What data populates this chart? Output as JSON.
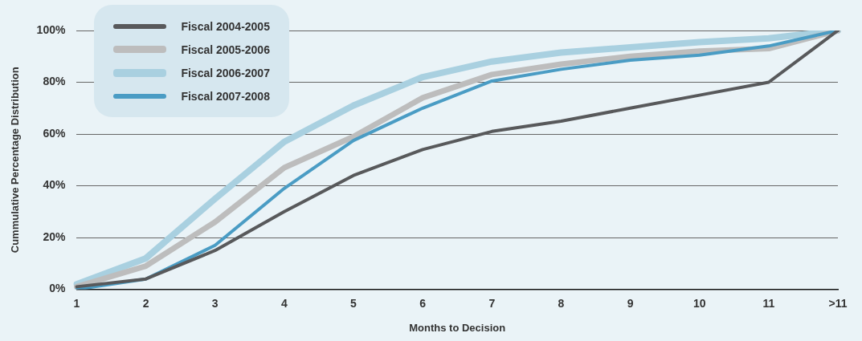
{
  "chart_data": {
    "type": "line",
    "xlabel": "Months to Decision",
    "ylabel": "Cummulative Percentage Distribution",
    "categories": [
      "1",
      "2",
      "3",
      "4",
      "5",
      "6",
      "7",
      "8",
      "9",
      "10",
      "11",
      ">11"
    ],
    "series": [
      {
        "name": "Fiscal 2004-2005",
        "color": "#58595b",
        "values": [
          1,
          4,
          15,
          30,
          44,
          54,
          61,
          65,
          70,
          75,
          80,
          100
        ]
      },
      {
        "name": "Fiscal 2005-2006",
        "color": "#bdbdbd",
        "values": [
          1,
          9,
          26,
          47,
          59,
          74,
          83,
          87,
          90,
          92,
          93,
          100
        ]
      },
      {
        "name": "Fiscal 2006-2007",
        "color": "#a9d0e0",
        "values": [
          2,
          12,
          35,
          57,
          71,
          82,
          88,
          91.5,
          93.5,
          95.5,
          97,
          100
        ]
      },
      {
        "name": "Fiscal 2007-2008",
        "color": "#4a9cc4",
        "values": [
          0,
          4,
          17,
          39,
          57.5,
          70,
          80.5,
          85,
          88.5,
          90.5,
          94,
          100
        ]
      }
    ],
    "ylim": [
      0,
      100
    ],
    "yticks": [
      {
        "value": 0,
        "label": "0%"
      },
      {
        "value": 20,
        "label": "20%"
      },
      {
        "value": 40,
        "label": "40%"
      },
      {
        "value": 60,
        "label": "60%"
      },
      {
        "value": 80,
        "label": "80%"
      },
      {
        "value": 100,
        "label": "100%"
      }
    ],
    "grid": "y",
    "legend": "top left",
    "marker": "none",
    "line_style": "solid"
  }
}
